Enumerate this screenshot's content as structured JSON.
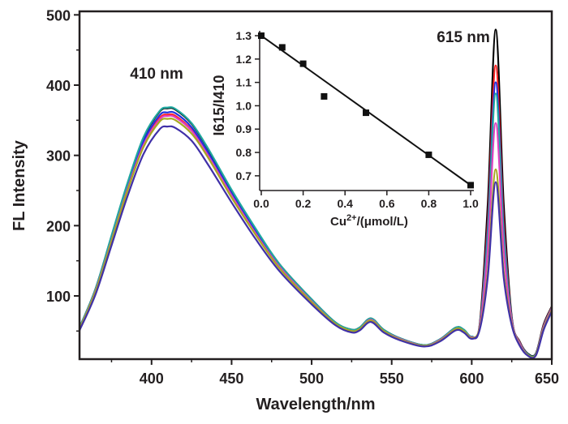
{
  "chart_data": [
    {
      "type": "line",
      "xlabel": "Wavelength/nm",
      "ylabel": "FL Intensity",
      "xlim": [
        355,
        650
      ],
      "ylim": [
        10,
        505
      ],
      "xticks": [
        400,
        450,
        500,
        550,
        600,
        650
      ],
      "yticks": [
        100,
        200,
        300,
        400,
        500
      ],
      "grid": false,
      "annotations": [
        "410 nm",
        "615 nm"
      ],
      "x": [
        355,
        365,
        375,
        385,
        395,
        405,
        410,
        415,
        425,
        435,
        450,
        465,
        480,
        500,
        515,
        525,
        530,
        537,
        545,
        555,
        570,
        580,
        590,
        595,
        600,
        605,
        610,
        615,
        620,
        625,
        630,
        635,
        640,
        645,
        650
      ],
      "series": [
        {
          "color": "#000000",
          "values": [
            55,
            110,
            185,
            260,
            325,
            362,
            367,
            365,
            345,
            310,
            250,
            195,
            145,
            95,
            62,
            52,
            55,
            68,
            52,
            40,
            30,
            38,
            55,
            52,
            42,
            60,
            230,
            479,
            230,
            70,
            35,
            18,
            18,
            60,
            85
          ]
        },
        {
          "color": "#ff2020",
          "values": [
            54,
            107,
            180,
            254,
            317,
            353,
            358,
            356,
            336,
            302,
            244,
            190,
            141,
            93,
            60,
            51,
            54,
            66,
            51,
            39,
            29,
            37,
            54,
            51,
            41,
            58,
            205,
            428,
            205,
            67,
            34,
            17,
            17,
            58,
            84
          ]
        },
        {
          "color": "#2030e0",
          "values": [
            54,
            108,
            182,
            256,
            320,
            357,
            361,
            360,
            340,
            305,
            246,
            192,
            143,
            94,
            61,
            51,
            54,
            67,
            51,
            39,
            30,
            37,
            54,
            51,
            41,
            57,
            194,
            404,
            194,
            66,
            33,
            17,
            17,
            57,
            83
          ]
        },
        {
          "color": "#20a8a0",
          "values": [
            55,
            110,
            186,
            261,
            326,
            363,
            368,
            366,
            346,
            311,
            251,
            196,
            145,
            95,
            62,
            52,
            55,
            68,
            52,
            40,
            30,
            38,
            55,
            52,
            42,
            57,
            186,
            388,
            186,
            66,
            33,
            17,
            17,
            57,
            83
          ]
        },
        {
          "color": "#e040c0",
          "values": [
            53,
            107,
            179,
            252,
            315,
            351,
            356,
            354,
            335,
            301,
            243,
            189,
            141,
            92,
            60,
            50,
            53,
            66,
            50,
            39,
            29,
            37,
            53,
            50,
            41,
            56,
            166,
            346,
            166,
            64,
            32,
            16,
            16,
            56,
            82
          ]
        },
        {
          "color": "#a8a820",
          "values": [
            53,
            106,
            178,
            250,
            312,
            348,
            352,
            350,
            331,
            298,
            240,
            187,
            139,
            91,
            60,
            50,
            53,
            65,
            50,
            38,
            29,
            36,
            53,
            50,
            40,
            54,
            134,
            280,
            134,
            60,
            30,
            16,
            16,
            54,
            80
          ]
        },
        {
          "color": "#4030a8",
          "values": [
            51,
            102,
            172,
            242,
            302,
            337,
            341,
            339,
            321,
            288,
            233,
            181,
            135,
            88,
            58,
            48,
            51,
            63,
            48,
            37,
            28,
            35,
            51,
            48,
            39,
            52,
            126,
            262,
            126,
            58,
            29,
            15,
            15,
            52,
            78
          ]
        }
      ]
    },
    {
      "type": "scatter",
      "xlabel_main": "Cu",
      "xlabel_sup": "2+",
      "xlabel_rest": "/(μmol/L)",
      "ylabel": "I615/I410",
      "xlim": [
        0,
        1.0
      ],
      "ylim": [
        0.637,
        1.314
      ],
      "xticks": [
        "0.0",
        "0.2",
        "0.4",
        "0.6",
        "0.8",
        "1.0"
      ],
      "yticks": [
        "0.7",
        "0.8",
        "0.9",
        "1.0",
        "1.1",
        "1.2",
        "1.3"
      ],
      "x": [
        0,
        0.1,
        0.2,
        0.3,
        0.5,
        0.8,
        1.0
      ],
      "y": [
        1.3,
        1.25,
        1.18,
        1.04,
        0.97,
        0.79,
        0.66
      ],
      "fit_line": {
        "x": [
          0,
          1.0
        ],
        "y": [
          1.3,
          0.66
        ]
      }
    }
  ]
}
